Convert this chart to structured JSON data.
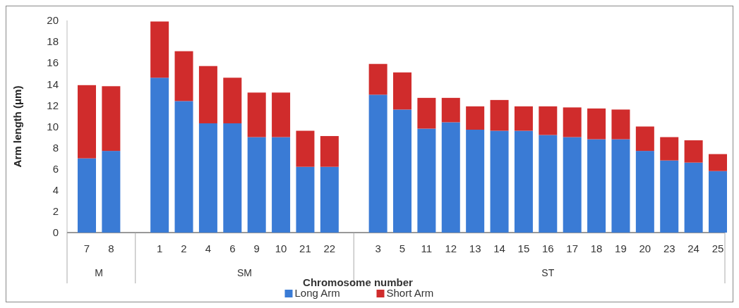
{
  "chart_data": {
    "type": "bar",
    "stacked": true,
    "xlabel": "Chromosome number",
    "ylabel": "Arm length (μm)",
    "categories": [
      "7",
      "8",
      null,
      "1",
      "2",
      "4",
      "6",
      "9",
      "10",
      "21",
      "22",
      null,
      "3",
      "5",
      "11",
      "12",
      "13",
      "14",
      "15",
      "16",
      "17",
      "18",
      "19",
      "20",
      "23",
      "24",
      "25"
    ],
    "series": [
      {
        "name": "Long Arm",
        "color": "#3a7bd5",
        "values": [
          7.0,
          7.7,
          null,
          14.6,
          12.4,
          10.3,
          10.3,
          9.0,
          9.0,
          6.2,
          6.2,
          null,
          13.0,
          11.6,
          9.8,
          10.4,
          9.7,
          9.6,
          9.6,
          9.2,
          9.0,
          8.8,
          8.8,
          7.7,
          6.8,
          6.6,
          5.8
        ]
      },
      {
        "name": "Short Arm",
        "color": "#d02c2c",
        "values": [
          6.9,
          6.1,
          null,
          5.3,
          4.7,
          5.4,
          4.3,
          4.2,
          4.2,
          3.4,
          2.9,
          null,
          2.9,
          3.5,
          2.9,
          2.3,
          2.2,
          2.9,
          2.3,
          2.7,
          2.8,
          2.9,
          2.8,
          2.3,
          2.2,
          2.1,
          1.6
        ]
      }
    ],
    "annotations": [
      "M",
      "SM",
      "ST"
    ],
    "ylim": [
      0,
      20
    ],
    "yticks": [
      0,
      2,
      4,
      6,
      8,
      10,
      12,
      14,
      16,
      18,
      20
    ],
    "grid": false,
    "legend": "bottom"
  }
}
